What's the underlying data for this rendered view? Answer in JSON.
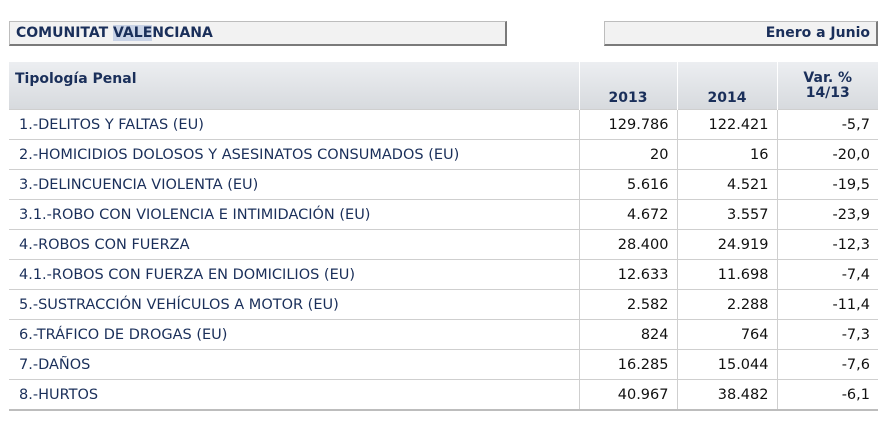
{
  "header": {
    "region_pre": "COMUNITAT ",
    "region_hl": "VALE",
    "region_post": "NCIANA",
    "period": "Enero a Junio"
  },
  "table": {
    "columns": {
      "type": "Tipología Penal",
      "y2013": "2013",
      "y2014": "2014",
      "var_line1": "Var. %",
      "var_line2": "14/13"
    },
    "rows": [
      {
        "label": "1.-DELITOS Y FALTAS (EU)",
        "v2013": "129.786",
        "v2014": "122.421",
        "var": "-5,7"
      },
      {
        "label": "2.-HOMICIDIOS DOLOSOS Y ASESINATOS CONSUMADOS (EU)",
        "v2013": "20",
        "v2014": "16",
        "var": "-20,0"
      },
      {
        "label": "3.-DELINCUENCIA VIOLENTA (EU)",
        "v2013": "5.616",
        "v2014": "4.521",
        "var": "-19,5"
      },
      {
        "label": "3.1.-ROBO CON VIOLENCIA E INTIMIDACIÓN (EU)",
        "v2013": "4.672",
        "v2014": "3.557",
        "var": "-23,9"
      },
      {
        "label": "4.-ROBOS CON FUERZA",
        "v2013": "28.400",
        "v2014": "24.919",
        "var": "-12,3"
      },
      {
        "label": "4.1.-ROBOS CON FUERZA EN DOMICILIOS (EU)",
        "v2013": "12.633",
        "v2014": "11.698",
        "var": "-7,4"
      },
      {
        "label": "5.-SUSTRACCIÓN VEHÍCULOS A MOTOR (EU)",
        "v2013": "2.582",
        "v2014": "2.288",
        "var": "-11,4"
      },
      {
        "label": "6.-TRÁFICO DE DROGAS (EU)",
        "v2013": "824",
        "v2014": "764",
        "var": "-7,3"
      },
      {
        "label": "7.-DAÑOS",
        "v2013": "16.285",
        "v2014": "15.044",
        "var": "-7,6"
      },
      {
        "label": "8.-HURTOS",
        "v2013": "40.967",
        "v2014": "38.482",
        "var": "-6,1"
      }
    ]
  }
}
